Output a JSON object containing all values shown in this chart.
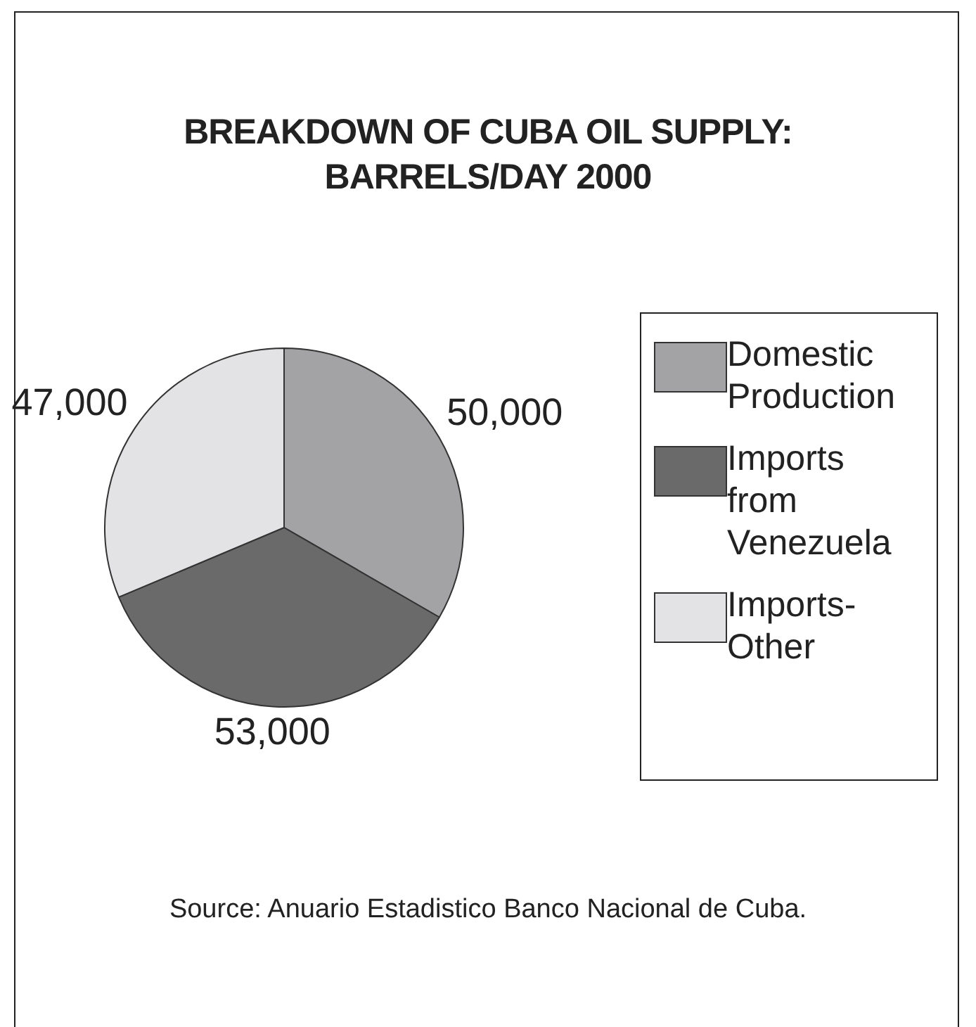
{
  "chart_data": {
    "type": "pie",
    "title": "BREAKDOWN OF CUBA OIL SUPPLY: BARRELS/DAY 2000",
    "categories": [
      "Domestic Production",
      "Imports from Venezuela",
      "Imports-Other"
    ],
    "values": [
      50000,
      53000,
      47000
    ],
    "colors": [
      "#a3a3a5",
      "#6a6a6a",
      "#e3e3e5"
    ],
    "value_labels": [
      "50,000",
      "53,000",
      "47,000"
    ],
    "legend": "right",
    "annotations": [
      "Source: Anuario Estadistico Banco Nacional de Cuba."
    ]
  }
}
